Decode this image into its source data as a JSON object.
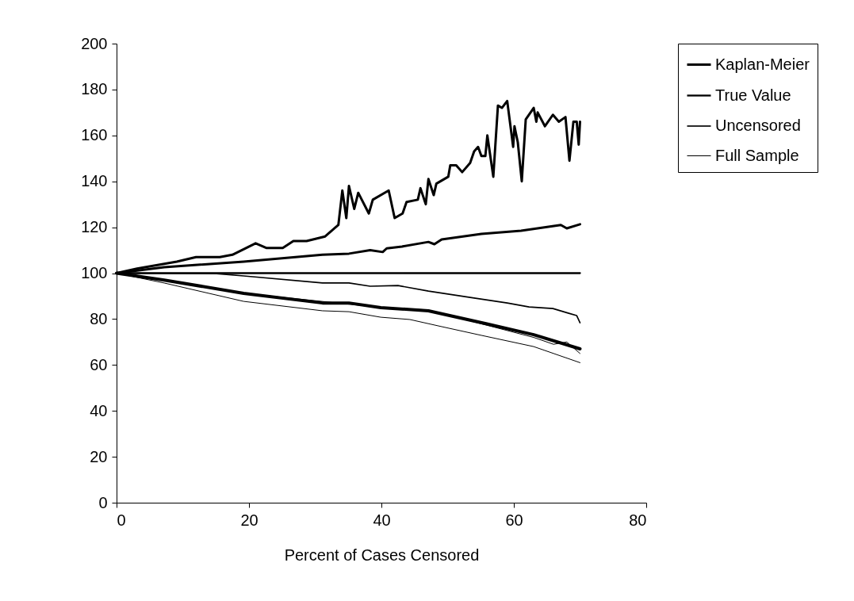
{
  "chart_data": {
    "type": "line",
    "xlabel": "Percent of Cases Censored",
    "xlim": [
      0,
      80
    ],
    "xticks": [
      0,
      20,
      40,
      60,
      80
    ],
    "ylim": [
      0,
      200
    ],
    "yticks": [
      0,
      20,
      40,
      60,
      80,
      100,
      120,
      140,
      160,
      180,
      200
    ],
    "grid": false,
    "legend": "right",
    "marker": "none",
    "line_style": "solid",
    "series": [
      {
        "color": "#000000",
        "x": [
          0,
          3.1,
          9.1,
          12,
          15.6,
          17.5,
          21,
          22.6,
          25.1,
          26.7,
          28.7,
          31.5,
          33.5,
          34.1,
          34.7,
          35.1,
          35.9,
          36.5,
          38.1,
          38.7,
          41.1,
          42,
          43.2,
          43.8,
          45.5,
          45.9,
          46.7,
          47.1,
          47.9,
          48.3,
          50.1,
          50.4,
          51.3,
          52.2,
          53.4,
          54,
          54.6,
          55.1,
          55.7,
          56,
          56.9,
          57.6,
          58.2,
          59,
          59.9,
          60.1,
          60.6,
          61.2,
          61.8,
          63,
          63.4,
          63.6,
          64.7,
          65.9,
          66.8,
          67.8,
          68.4,
          69,
          69.5,
          69.8,
          70
        ],
        "values": [
          100,
          102,
          105,
          107,
          107,
          108,
          113,
          111,
          111,
          114,
          114,
          116,
          121,
          136,
          124,
          138,
          128,
          135,
          126,
          132,
          136,
          124,
          126,
          131,
          132,
          137,
          130,
          141,
          134,
          139,
          142,
          147,
          147,
          144,
          148,
          153,
          155,
          151,
          151,
          160,
          142,
          173,
          172,
          175,
          155,
          164,
          157,
          140,
          167,
          172,
          166,
          170,
          164,
          169,
          166,
          168,
          149,
          166,
          166,
          156,
          166
        ]
      },
      {
        "name": "Kaplan-Meier",
        "color": "#000000",
        "x": [
          0,
          7.2,
          19.2,
          31.1,
          35.1,
          38.3,
          40.2,
          40.8,
          43.1,
          47.1,
          48,
          49.1,
          55.1,
          61.1,
          67.1,
          68,
          70
        ],
        "values": [
          100,
          102.6,
          105,
          108,
          108.5,
          110,
          109.2,
          110.8,
          111.6,
          113.6,
          112.6,
          114.7,
          117.1,
          118.5,
          121,
          119.5,
          121.3
        ]
      },
      {
        "name": "True Value",
        "color": "#000000",
        "x": [
          0,
          70
        ],
        "values": [
          100,
          100
        ]
      },
      {
        "name": "Uncensored",
        "color": "#000000",
        "x": [
          0,
          15.1,
          19.2,
          31.1,
          35.1,
          38.3,
          42.5,
          47.1,
          54.2,
          59,
          62.3,
          65.9,
          68.3,
          69.5,
          70
        ],
        "values": [
          100,
          99.8,
          98.8,
          95.7,
          95.7,
          94.3,
          94.6,
          92.2,
          89.1,
          87,
          85.3,
          84.6,
          82.5,
          81.5,
          78.4
        ]
      },
      {
        "color": "#000000",
        "x": [
          0,
          20,
          40,
          47,
          55,
          63,
          66,
          68,
          70
        ],
        "values": [
          100,
          91,
          85,
          84,
          78,
          72,
          69,
          70,
          65
        ]
      },
      {
        "color": "#000000",
        "x": [
          0,
          7.2,
          19.2,
          31.1,
          35.1,
          39.9,
          47.1,
          55.8,
          63,
          70
        ],
        "values": [
          100,
          97,
          91.2,
          87,
          87,
          85,
          83.6,
          78,
          73.2,
          67
        ]
      },
      {
        "name": "Full Sample",
        "color": "#000000",
        "x": [
          0,
          7.2,
          19.2,
          31.1,
          35.1,
          39.9,
          44.3,
          49.1,
          55.1,
          63,
          66,
          70
        ],
        "values": [
          100,
          95.7,
          87.7,
          83.6,
          83.2,
          80.8,
          79.8,
          76.7,
          72.9,
          68,
          65,
          61
        ]
      }
    ]
  }
}
